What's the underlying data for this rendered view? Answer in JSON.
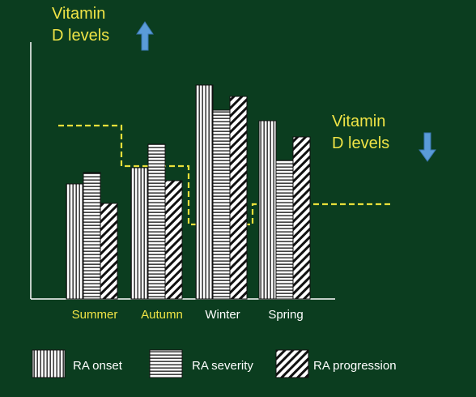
{
  "chart_data": {
    "type": "bar",
    "categories": [
      "Summer",
      "Autumn",
      "Winter",
      "Spring"
    ],
    "series": [
      {
        "name": "RA onset",
        "values": [
          142,
          162,
          264,
          220
        ]
      },
      {
        "name": "RA severity",
        "values": [
          156,
          191,
          233,
          171
        ]
      },
      {
        "name": "RA progression",
        "values": [
          118,
          146,
          250,
          200
        ]
      }
    ],
    "ylim": [
      0,
      300
    ],
    "vitamin_d_step_line": [
      214,
      164,
      92,
      117
    ],
    "xlabel": "",
    "ylabel": "",
    "legend": "bottom",
    "grid": false
  },
  "annotations": {
    "high_line1": "Vitamin",
    "high_line2": "D levels",
    "low_line1": "Vitamin",
    "low_line2": "D levels",
    "up_arrow_icon": "arrow-up-icon",
    "down_arrow_icon": "arrow-down-icon"
  },
  "legend_items": {
    "onset": "RA onset",
    "severity": "RA severity",
    "progression": "RA progression"
  },
  "colors": {
    "background": "#0b3d1f",
    "bars": "#ffffff",
    "bar_lines": "#111111",
    "vitamin_line": "#e8df3a",
    "arrow": "#5a9bd8",
    "axis": "#ffffff",
    "season_label_warm": "#f0e446",
    "season_label_cold": "#ffffff"
  }
}
